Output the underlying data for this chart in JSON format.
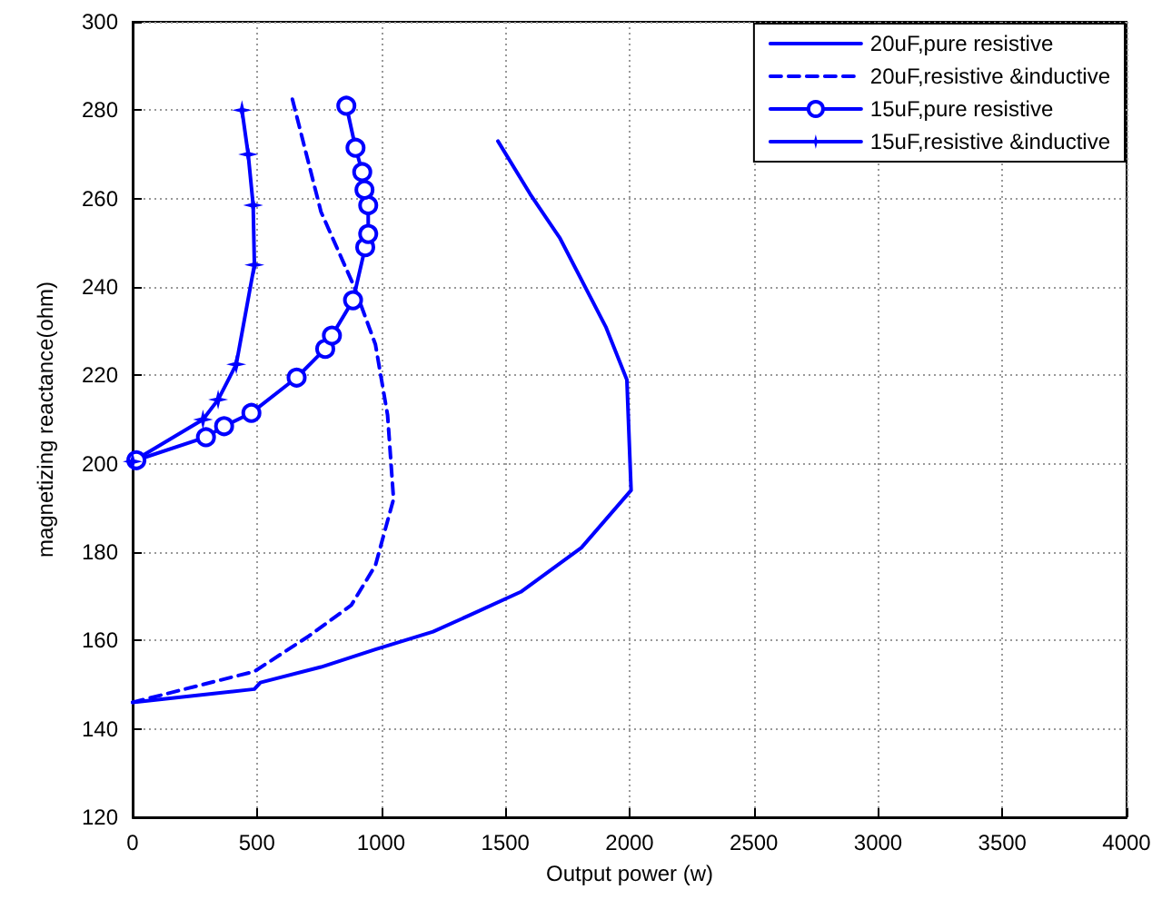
{
  "chart_data": {
    "type": "line",
    "xlabel": "Output power (w)",
    "ylabel": "magnetizing reactance(ohm)",
    "xlim": [
      0,
      4000
    ],
    "xticks": [
      0,
      500,
      1000,
      1500,
      2000,
      2500,
      3000,
      3500,
      4000
    ],
    "ylim": [
      120,
      300
    ],
    "yticks": [
      120,
      140,
      160,
      180,
      200,
      220,
      240,
      260,
      280,
      300
    ],
    "grid": true,
    "legend": "top right",
    "series": [
      {
        "name": "20uF,pure resistive",
        "color": "#0000ff",
        "line_style": "solid",
        "marker": "none",
        "x": [
          0,
          490,
          514,
          758,
          977,
          1209,
          1367,
          1562,
          1806,
          2006,
          1989,
          1904,
          1720,
          1600,
          1470
        ],
        "values": [
          146,
          149,
          150.5,
          154,
          158,
          162,
          166,
          171,
          181,
          194,
          219,
          231,
          251,
          261,
          273
        ]
      },
      {
        "name": "20uF,resistive &inductive",
        "color": "#0000ff",
        "line_style": "dashed",
        "marker": "none",
        "x": [
          0,
          490,
          709,
          880,
          977,
          1050,
          1026,
          977,
          892,
          758,
          636
        ],
        "values": [
          146,
          153,
          161,
          168,
          177,
          192,
          211,
          227,
          240,
          257,
          284
        ]
      },
      {
        "name": "15uF,pure resistive",
        "color": "#0000ff",
        "line_style": "solid",
        "marker": "circle",
        "x": [
          15,
          295,
          368,
          478,
          660,
          775,
          802,
          887,
          936,
          948,
          948,
          933,
          924,
          897,
          860
        ],
        "values": [
          200.8,
          206,
          208.5,
          211.5,
          219.5,
          226,
          229,
          237,
          249,
          252,
          258.5,
          262,
          266,
          271.5,
          281
        ]
      },
      {
        "name": "15uF,resistive &inductive",
        "color": "#0000ff",
        "line_style": "solid",
        "marker": "star",
        "x": [
          0,
          283,
          344,
          417,
          490,
          485,
          465,
          440
        ],
        "values": [
          200.5,
          210,
          214.5,
          222.5,
          245,
          258.5,
          270,
          280
        ]
      }
    ]
  }
}
